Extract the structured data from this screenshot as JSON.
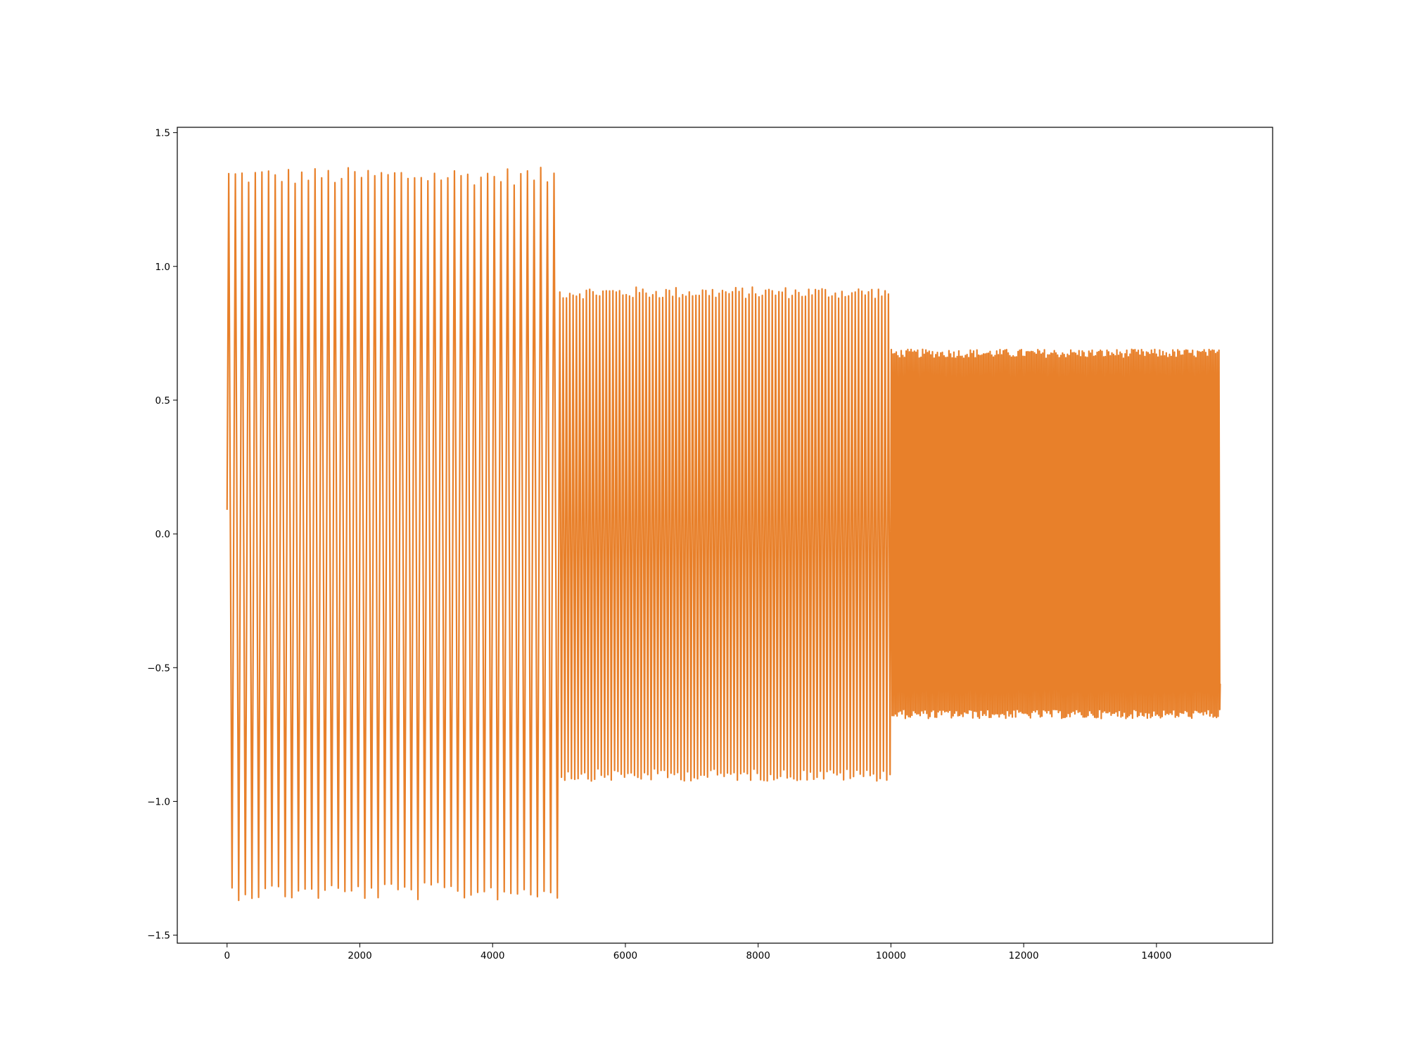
{
  "chart_data": {
    "type": "line",
    "title": "",
    "xlabel": "",
    "ylabel": "",
    "xlim": [
      -750,
      15750
    ],
    "ylim": [
      -1.53,
      1.52
    ],
    "grid": false,
    "legend": "none",
    "x_ticks": [
      0,
      2000,
      4000,
      6000,
      8000,
      10000,
      12000,
      14000
    ],
    "x_tick_labels": [
      "0",
      "2000",
      "4000",
      "6000",
      "8000",
      "10000",
      "12000",
      "14000"
    ],
    "y_ticks": [
      -1.5,
      -1.0,
      -0.5,
      0.0,
      0.5,
      1.0,
      1.5
    ],
    "y_tick_labels": [
      "−1.5",
      "−1.0",
      "−0.5",
      "0.0",
      "0.5",
      "1.0",
      "1.5"
    ],
    "series": [
      {
        "color": "#e8802a",
        "start": {
          "x": 0,
          "y": 0.09
        },
        "end": {
          "x": 14960,
          "y": -0.56
        },
        "segments": [
          {
            "x_start": 0,
            "x_end": 5000,
            "cycles": 50,
            "amplitude": 1.35
          },
          {
            "x_start": 5000,
            "x_end": 10000,
            "cycles": 100,
            "amplitude": 0.91
          },
          {
            "x_start": 10000,
            "x_end": 14960,
            "cycles": 200,
            "amplitude": 0.68
          }
        ]
      }
    ]
  }
}
